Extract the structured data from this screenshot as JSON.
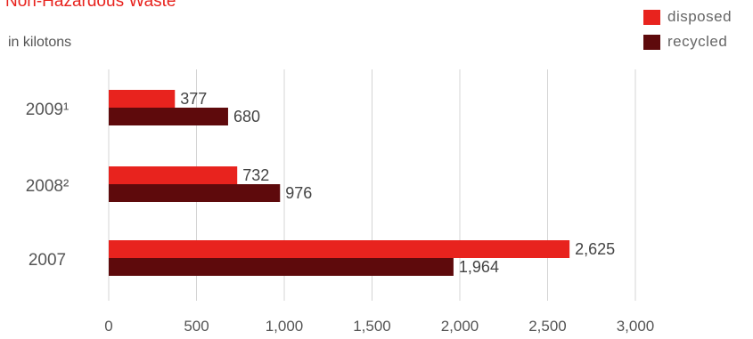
{
  "colors": {
    "disposed": "#e8231e",
    "recycled": "#5e0a0c",
    "grid": "#d4d4d4",
    "title": "#e8231e"
  },
  "chart_data": {
    "type": "bar",
    "orientation": "horizontal",
    "title": "Non-Hazardous Waste",
    "subtitle": "in kilotons",
    "categories": [
      "2009¹",
      "2008²",
      "2007"
    ],
    "series": [
      {
        "name": "disposed",
        "values": [
          377,
          732,
          2625
        ],
        "labels": [
          "377",
          "732",
          "2,625"
        ]
      },
      {
        "name": "recycled",
        "values": [
          680,
          976,
          1964
        ],
        "labels": [
          "680",
          "976",
          "1,964"
        ]
      }
    ],
    "xlim": [
      0,
      3000
    ],
    "xticks": [
      0,
      500,
      1000,
      1500,
      2000,
      2500,
      3000
    ],
    "xtick_labels": [
      "0",
      "500",
      "1,000",
      "1,500",
      "2,000",
      "2,500",
      "3,000"
    ],
    "grid": true,
    "legend_position": "top-right"
  }
}
